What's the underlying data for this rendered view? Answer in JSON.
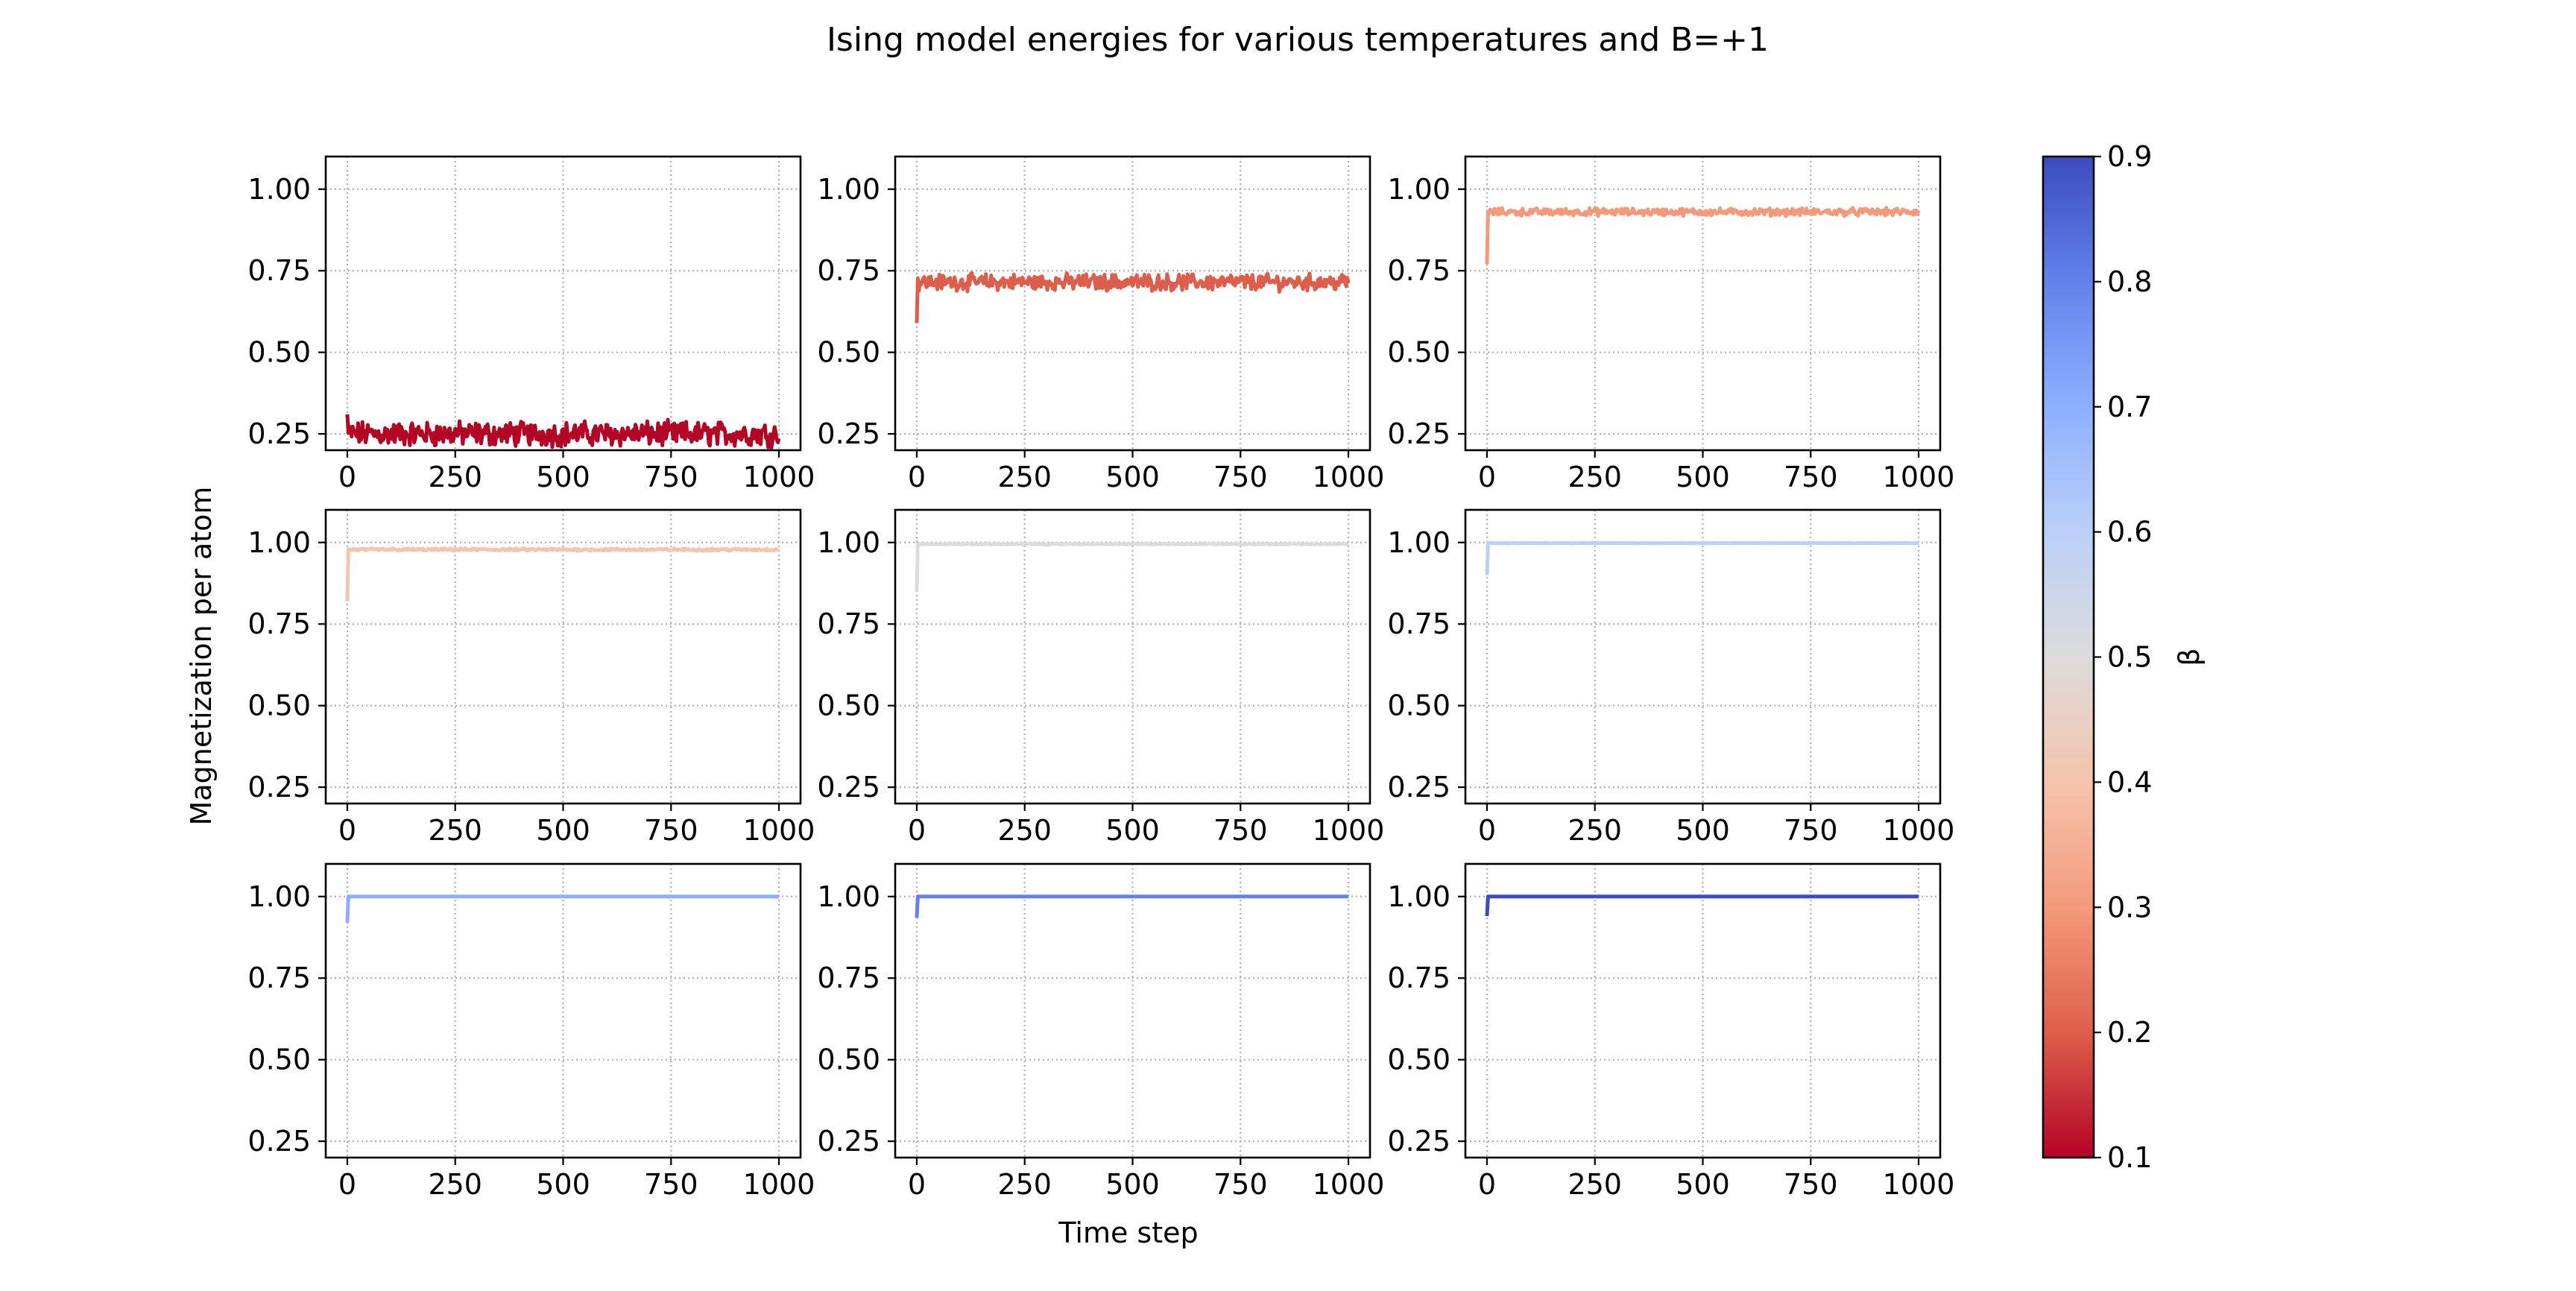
{
  "chart_data": {
    "type": "line",
    "title": "Ising model energies for various temperatures and B=+1",
    "xlabel": "Time step",
    "ylabel": "Magnetization per atom",
    "xlim": [
      -50,
      1050
    ],
    "ylim": [
      0.2,
      1.1
    ],
    "x_ticks": [
      0,
      250,
      500,
      750,
      1000
    ],
    "x_tick_labels": [
      "0",
      "250",
      "500",
      "750",
      "1000"
    ],
    "y_ticks": [
      0.25,
      0.5,
      0.75,
      1.0
    ],
    "y_tick_labels": [
      "0.25",
      "0.50",
      "0.75",
      "1.00"
    ],
    "grid": true,
    "x_range": [
      0,
      1000
    ],
    "colorbar": {
      "label": "β",
      "range": [
        0.1,
        0.9
      ],
      "ticks": [
        0.1,
        0.2,
        0.3,
        0.4,
        0.5,
        0.6,
        0.7,
        0.8,
        0.9
      ],
      "tick_labels": [
        "0.1",
        "0.2",
        "0.3",
        "0.4",
        "0.5",
        "0.6",
        "0.7",
        "0.8",
        "0.9"
      ],
      "colormap": "coolwarm (reversed)",
      "color_low": "#b40426",
      "color_high": "#3b4cc0"
    },
    "series": [
      {
        "beta": 0.1,
        "color": "#b40426",
        "start": 0.31,
        "mean": 0.25,
        "noise": 0.03
      },
      {
        "beta": 0.2,
        "color": "#dd5f4b",
        "start": 0.59,
        "mean": 0.715,
        "noise": 0.02
      },
      {
        "beta": 0.3,
        "color": "#f49a7b",
        "start": 0.77,
        "mean": 0.93,
        "noise": 0.009
      },
      {
        "beta": 0.4,
        "color": "#f5c4ac",
        "start": 0.82,
        "mean": 0.978,
        "noise": 0.003
      },
      {
        "beta": 0.5,
        "color": "#dddcdc",
        "start": 0.85,
        "mean": 0.995,
        "noise": 0.001
      },
      {
        "beta": 0.6,
        "color": "#bad0f8",
        "start": 0.9,
        "mean": 0.998,
        "noise": 0.0005
      },
      {
        "beta": 0.7,
        "color": "#8db0fe",
        "start": 0.92,
        "mean": 1.0,
        "noise": 0.0
      },
      {
        "beta": 0.8,
        "color": "#6282ea",
        "start": 0.935,
        "mean": 1.0,
        "noise": 0.0
      },
      {
        "beta": 0.9,
        "color": "#3b4cc0",
        "start": 0.94,
        "mean": 1.0,
        "noise": 0.0
      }
    ]
  }
}
